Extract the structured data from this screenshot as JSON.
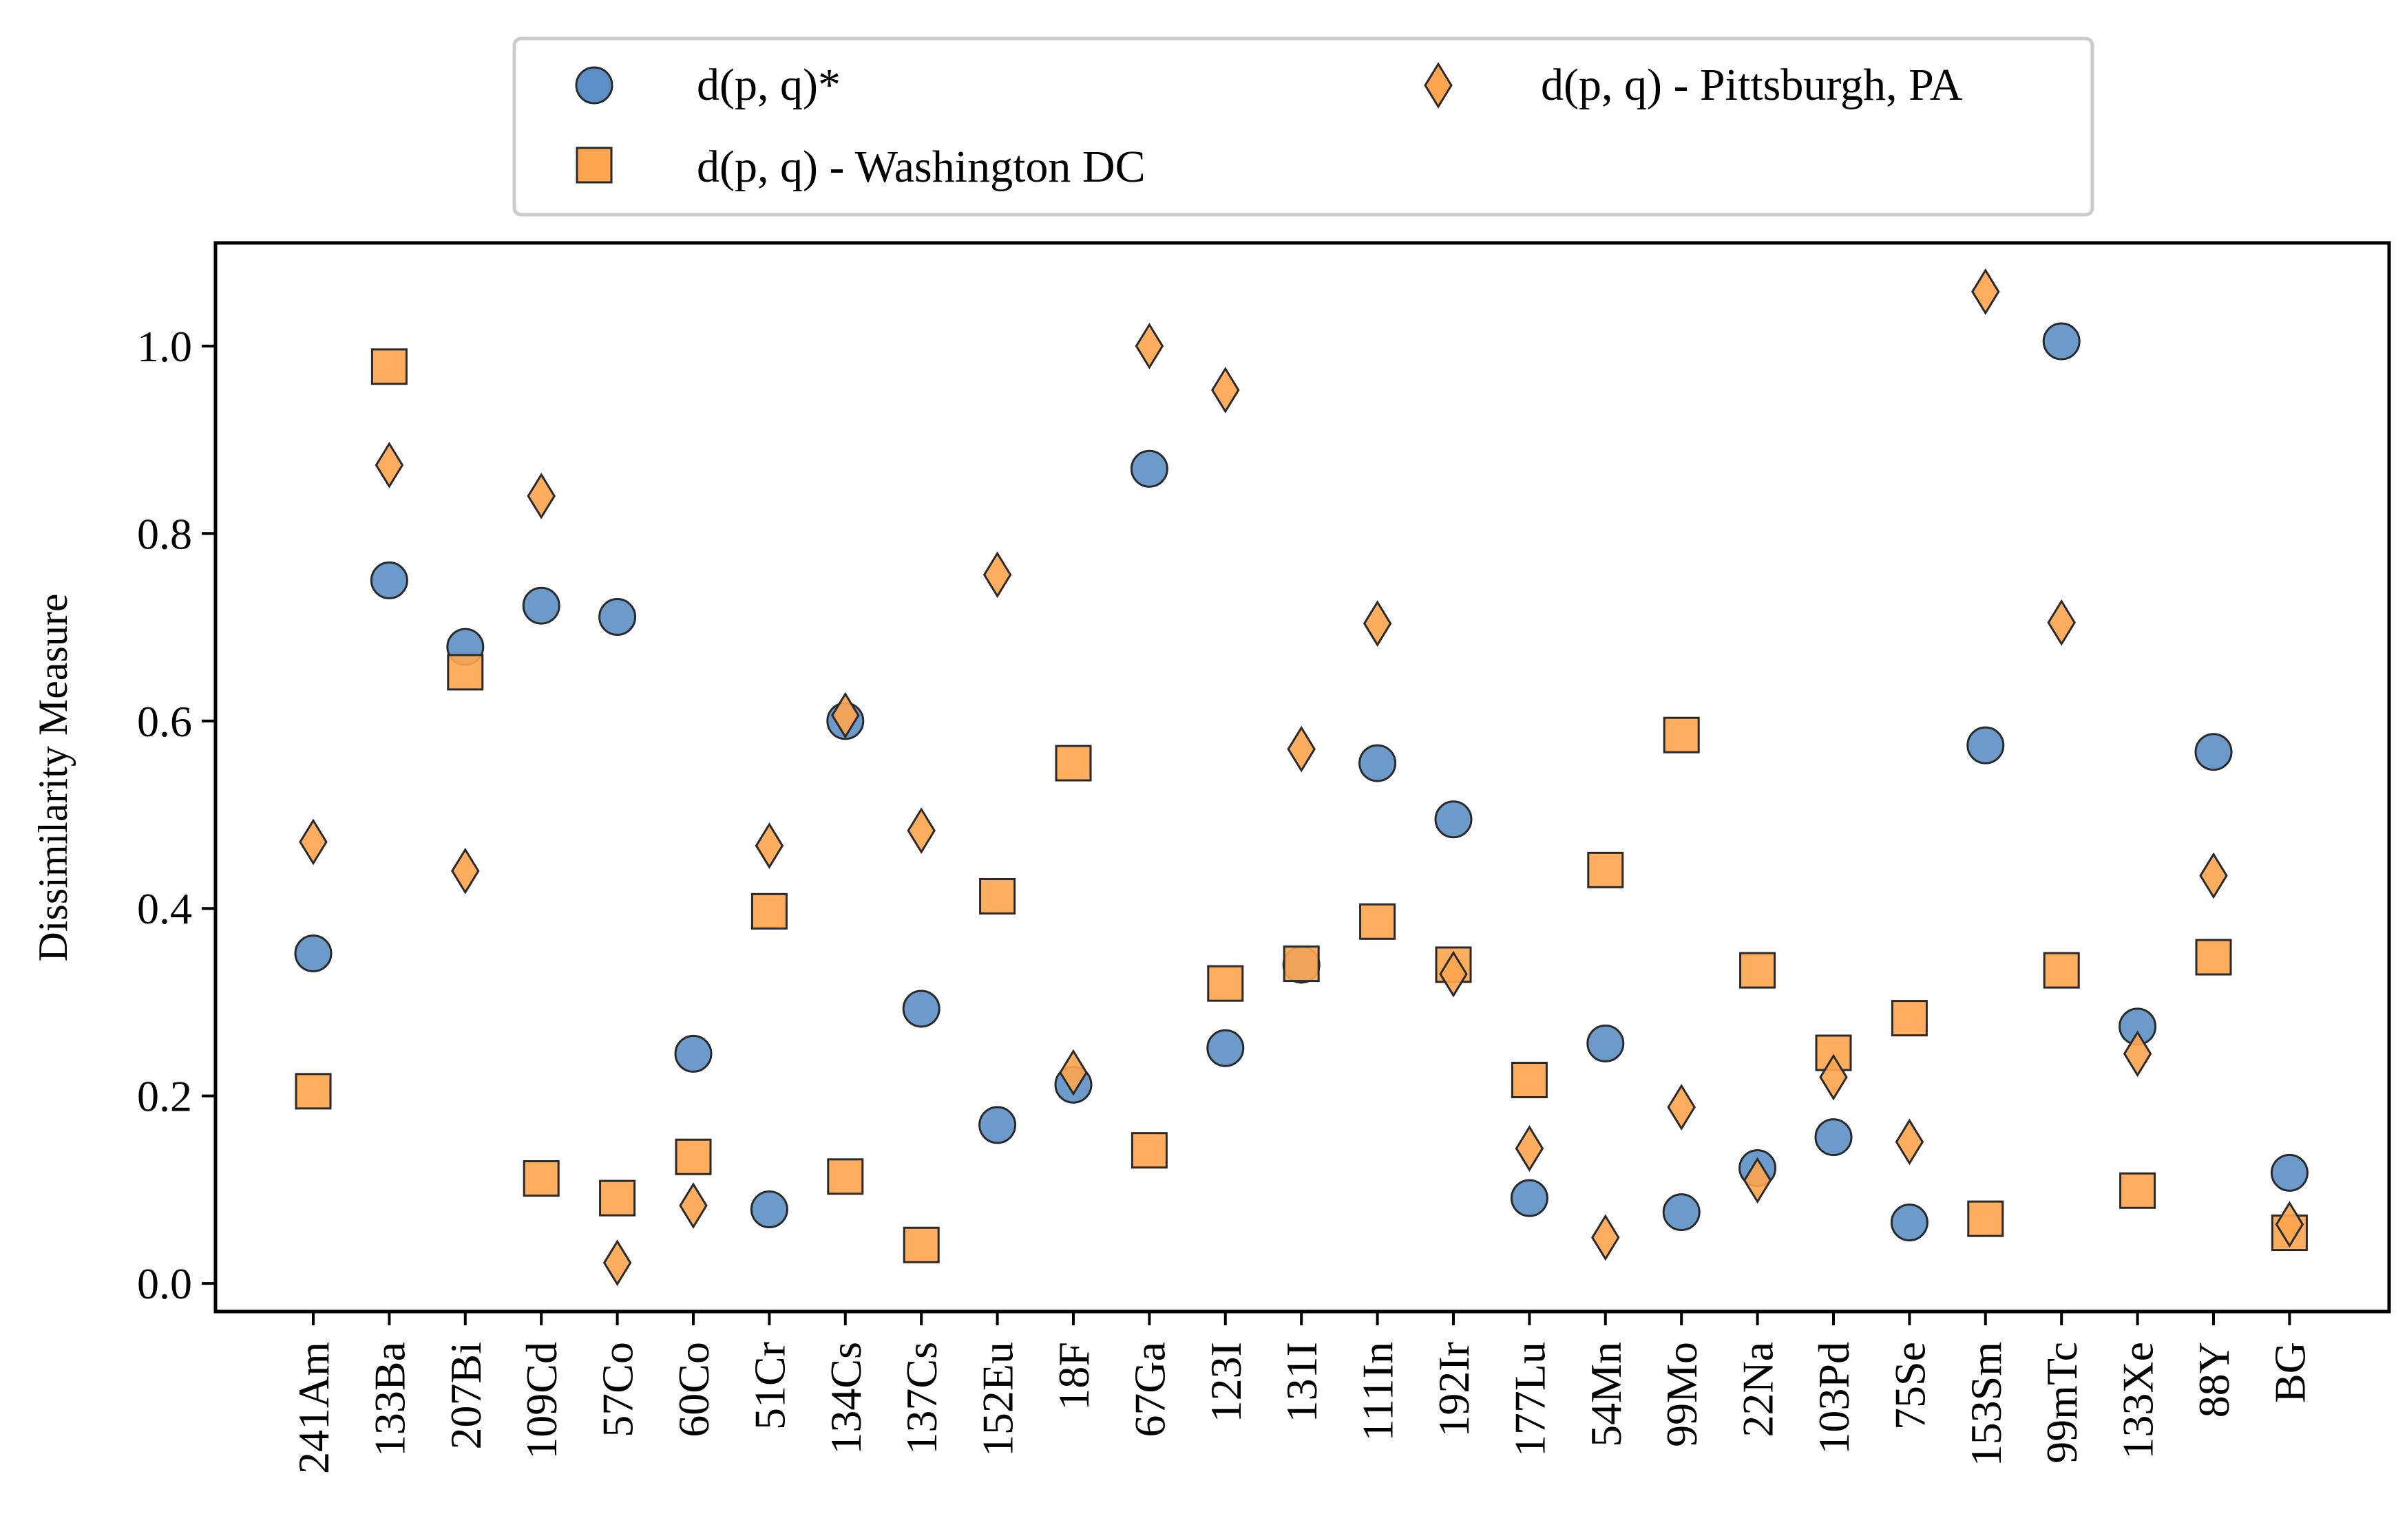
{
  "chart_data": {
    "type": "scatter",
    "title": "",
    "xlabel": "",
    "ylabel": "Dissimilarity Measure",
    "ylim": [
      -0.03,
      1.11
    ],
    "yticks": [
      "0.0",
      "0.2",
      "0.4",
      "0.6",
      "0.8",
      "1.0"
    ],
    "grid": false,
    "legend_position": "top-center, above plot, 2 columns",
    "categories": [
      "241Am",
      "133Ba",
      "207Bi",
      "109Cd",
      "57Co",
      "60Co",
      "51Cr",
      "134Cs",
      "137Cs",
      "152Eu",
      "18F",
      "67Ga",
      "123I",
      "131I",
      "111In",
      "192Ir",
      "177Lu",
      "54Mn",
      "99Mo",
      "22Na",
      "103Pd",
      "75Se",
      "153Sm",
      "99mTc",
      "133Xe",
      "88Y",
      "BG"
    ],
    "series": [
      {
        "name": "d(p, q)*",
        "marker": "circle",
        "color": "#5b8fc5",
        "values": [
          0.352,
          0.75,
          0.679,
          0.723,
          0.711,
          0.245,
          0.079,
          0.6,
          0.293,
          0.169,
          0.212,
          0.869,
          0.251,
          0.34,
          0.555,
          0.495,
          0.091,
          0.256,
          0.076,
          0.123,
          0.156,
          0.065,
          0.574,
          1.005,
          0.274,
          0.567,
          0.118
        ]
      },
      {
        "name": "d(p, q) - Washington DC",
        "marker": "square",
        "color": "#ffa54f",
        "values": [
          0.205,
          0.978,
          0.652,
          0.112,
          0.091,
          0.135,
          0.397,
          0.114,
          0.041,
          0.413,
          0.555,
          0.142,
          0.32,
          0.341,
          0.386,
          0.34,
          0.217,
          0.441,
          0.585,
          0.334,
          0.246,
          0.283,
          0.069,
          0.334,
          0.099,
          0.348,
          0.054
        ]
      },
      {
        "name": "d(p, q) - Pittsburgh, PA",
        "marker": "diamond",
        "color": "#ffa54f",
        "values": [
          0.471,
          0.873,
          0.44,
          0.84,
          0.022,
          0.083,
          0.467,
          0.606,
          0.483,
          0.756,
          0.225,
          1.0,
          0.953,
          0.57,
          0.704,
          0.33,
          0.144,
          0.049,
          0.188,
          0.11,
          0.22,
          0.151,
          1.058,
          0.705,
          0.245,
          0.435,
          0.063
        ]
      }
    ]
  }
}
